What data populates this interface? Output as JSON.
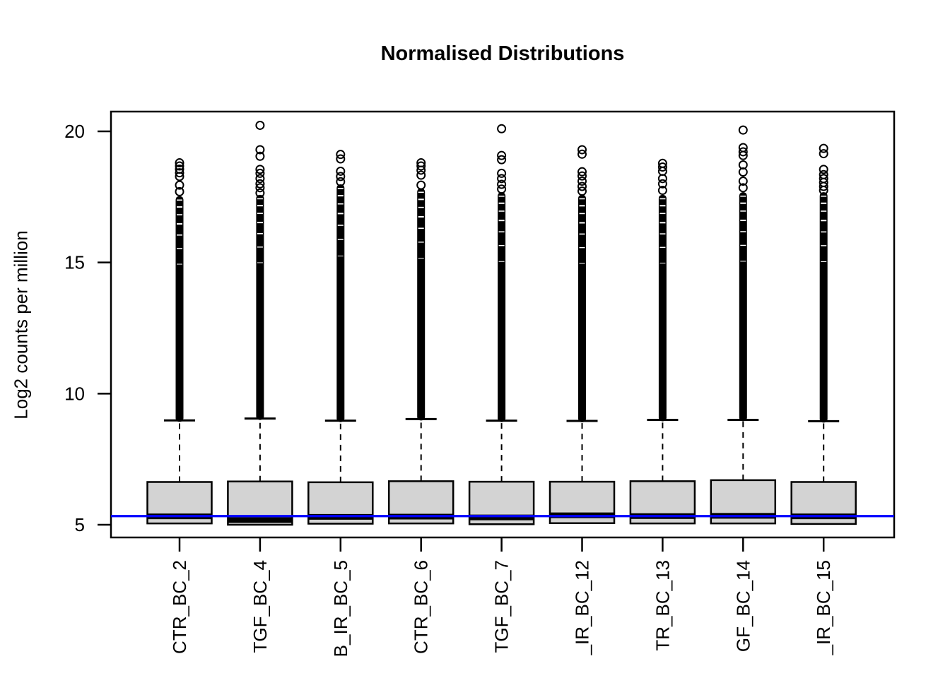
{
  "chart_data": {
    "type": "boxplot",
    "title": "Normalised Distributions",
    "ylabel": "Log2 counts per million",
    "xlabel": "",
    "grid": false,
    "legend": null,
    "y_ticks": [
      5,
      10,
      15,
      20
    ],
    "ylim": [
      4.5,
      20.8
    ],
    "box_fill": "#d3d3d3",
    "box_border": "#000000",
    "median_color": "#000000",
    "reference_line": {
      "value": 5.33,
      "color": "#0000ff"
    },
    "x_tick_labels_rotated": true,
    "categories": [
      "CTR_BC_2",
      "TGF_BC_4",
      "B_IR_BC_5",
      "CTR_BC_6",
      "TGF_BC_7",
      "_IR_BC_12",
      "TR_BC_13",
      "GF_BC_14",
      "_IR_BC_15"
    ],
    "series": [
      {
        "label": "CTR_BC_2",
        "q1": 5.05,
        "median": 5.32,
        "q3": 6.63,
        "whisker_high": 8.98,
        "dense_outlier_range": [
          8.98,
          17.45
        ],
        "outliers": [
          17.7,
          17.95,
          18.28,
          18.42,
          18.56,
          18.68,
          18.8
        ]
      },
      {
        "label": "TGF_BC_4",
        "q1": 5.0,
        "median": 5.18,
        "q3": 6.65,
        "whisker_high": 9.05,
        "dense_outlier_range": [
          9.05,
          17.5
        ],
        "outliers": [
          17.65,
          17.85,
          18.0,
          18.2,
          18.4,
          18.55,
          19.05,
          19.3,
          20.23
        ]
      },
      {
        "label": "B_IR_BC_5",
        "q1": 5.04,
        "median": 5.3,
        "q3": 6.62,
        "whisker_high": 8.97,
        "dense_outlier_range": [
          8.97,
          17.9
        ],
        "outliers": [
          18.08,
          18.28,
          18.48,
          18.95,
          19.12
        ]
      },
      {
        "label": "CTR_BC_6",
        "q1": 5.05,
        "median": 5.31,
        "q3": 6.66,
        "whisker_high": 9.03,
        "dense_outlier_range": [
          9.03,
          17.75
        ],
        "outliers": [
          17.95,
          18.33,
          18.52,
          18.68,
          18.8
        ]
      },
      {
        "label": "TGF_BC_7",
        "q1": 5.02,
        "median": 5.28,
        "q3": 6.64,
        "whisker_high": 8.97,
        "dense_outlier_range": [
          8.97,
          17.6
        ],
        "outliers": [
          17.8,
          17.98,
          18.2,
          18.4,
          18.92,
          19.08,
          20.1
        ]
      },
      {
        "label": "_IR_BC_12",
        "q1": 5.06,
        "median": 5.36,
        "q3": 6.64,
        "whisker_high": 8.96,
        "dense_outlier_range": [
          8.96,
          17.5
        ],
        "outliers": [
          17.72,
          17.9,
          18.1,
          18.3,
          18.46,
          19.13,
          19.3
        ]
      },
      {
        "label": "TR_BC_13",
        "q1": 5.05,
        "median": 5.33,
        "q3": 6.66,
        "whisker_high": 9.0,
        "dense_outlier_range": [
          9.0,
          17.5
        ],
        "outliers": [
          17.75,
          18.0,
          18.2,
          18.48,
          18.64,
          18.78
        ]
      },
      {
        "label": "GF_BC_14",
        "q1": 5.05,
        "median": 5.34,
        "q3": 6.7,
        "whisker_high": 9.0,
        "dense_outlier_range": [
          9.0,
          17.6
        ],
        "outliers": [
          17.85,
          18.1,
          18.45,
          18.72,
          19.08,
          19.22,
          19.38,
          20.05
        ]
      },
      {
        "label": "_IR_BC_15",
        "q1": 5.03,
        "median": 5.32,
        "q3": 6.63,
        "whisker_high": 8.95,
        "dense_outlier_range": [
          8.95,
          17.6
        ],
        "outliers": [
          17.75,
          17.9,
          18.05,
          18.2,
          18.35,
          18.55,
          19.15,
          19.35
        ]
      }
    ]
  }
}
